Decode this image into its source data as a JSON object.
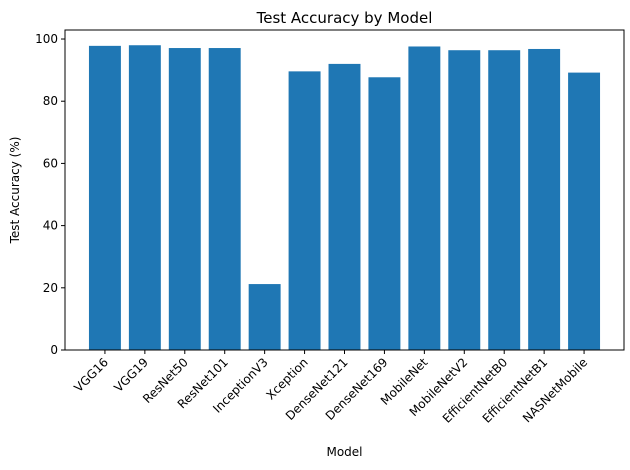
{
  "chart_data": {
    "type": "bar",
    "title": "Test Accuracy by Model",
    "xlabel": "Model",
    "ylabel": "Test Accuracy (%)",
    "categories": [
      "VGG16",
      "VGG19",
      "ResNet50",
      "ResNet101",
      "InceptionV3",
      "Xception",
      "DenseNet121",
      "DenseNet169",
      "MobileNet",
      "MobileNetV2",
      "EfficientNetB0",
      "EfficientNetB1",
      "NASNetMobile"
    ],
    "values": [
      97.8,
      98.0,
      97.1,
      97.1,
      21.2,
      89.6,
      92.0,
      87.7,
      97.6,
      96.4,
      96.4,
      96.8,
      89.2
    ],
    "ylim": [
      0,
      102.9
    ],
    "yticks": [
      0,
      20,
      40,
      60,
      80,
      100
    ],
    "grid": false,
    "bar_color": "#1f77b4"
  }
}
